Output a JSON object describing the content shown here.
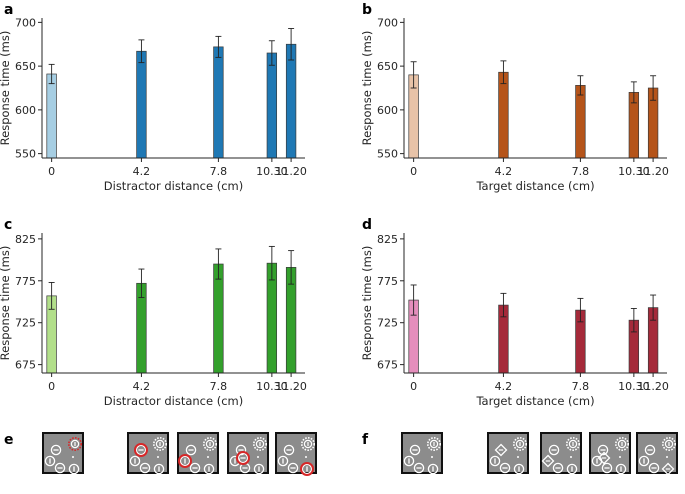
{
  "chart_data": [
    {
      "type": "bar",
      "panel": "a",
      "x": [
        0,
        4.2,
        7.8,
        10.3,
        11.2
      ],
      "tick_labels": [
        "0",
        "4.2",
        "7.8",
        "10.30",
        "11.20"
      ],
      "values": [
        641,
        667,
        672,
        665,
        675
      ],
      "errors": [
        11,
        13,
        12,
        14,
        18
      ],
      "colors": [
        "#a6cee3",
        "#1f78b4",
        "#1f78b4",
        "#1f78b4",
        "#1f78b4"
      ],
      "xlabel": "Distractor distance (cm)",
      "ylabel": "Response time (ms)",
      "ylim": [
        545,
        705
      ],
      "yticks": [
        550,
        600,
        650,
        700
      ]
    },
    {
      "type": "bar",
      "panel": "b",
      "x": [
        0,
        4.2,
        7.8,
        10.3,
        11.2
      ],
      "tick_labels": [
        "0",
        "4.2",
        "7.8",
        "10.30",
        "11.20"
      ],
      "values": [
        640,
        643,
        628,
        620,
        625
      ],
      "errors": [
        15,
        13,
        11,
        12,
        14
      ],
      "colors": [
        "#e8c3a8",
        "#b5541a",
        "#b5541a",
        "#b5541a",
        "#b5541a"
      ],
      "xlabel": "Target distance (cm)",
      "ylabel": "Response time (ms)",
      "ylim": [
        545,
        705
      ],
      "yticks": [
        550,
        600,
        650,
        700
      ]
    },
    {
      "type": "bar",
      "panel": "c",
      "x": [
        0,
        4.2,
        7.8,
        10.3,
        11.2
      ],
      "tick_labels": [
        "0",
        "4.2",
        "7.8",
        "10.30",
        "11.20"
      ],
      "values": [
        757,
        772,
        795,
        796,
        791
      ],
      "errors": [
        16,
        17,
        18,
        20,
        20
      ],
      "colors": [
        "#b2df8a",
        "#33a02c",
        "#33a02c",
        "#33a02c",
        "#33a02c"
      ],
      "xlabel": "Distractor distance (cm)",
      "ylabel": "Response time (ms)",
      "ylim": [
        665,
        832
      ],
      "yticks": [
        675,
        725,
        775,
        825
      ]
    },
    {
      "type": "bar",
      "panel": "d",
      "x": [
        0,
        4.2,
        7.8,
        10.3,
        11.2
      ],
      "tick_labels": [
        "0",
        "4.2",
        "7.8",
        "10.30",
        "11.20"
      ],
      "values": [
        752,
        746,
        740,
        728,
        743
      ],
      "errors": [
        18,
        14,
        14,
        14,
        15
      ],
      "colors": [
        "#e58ebc",
        "#a52a3a",
        "#a52a3a",
        "#a52a3a",
        "#a52a3a"
      ],
      "xlabel": "Target distance (cm)",
      "ylabel": "Response time (ms)",
      "ylim": [
        665,
        832
      ],
      "yticks": [
        675,
        725,
        775,
        825
      ]
    }
  ],
  "panel_labels": {
    "e": "e",
    "f": "f"
  },
  "stimulus_colors": {
    "background": "#8c8c8c",
    "frame": "#111111",
    "item": "#ffffff",
    "highlight": "#d62728"
  },
  "stimulus_icons": [
    "circle-bar-icon",
    "diamond-icon"
  ]
}
